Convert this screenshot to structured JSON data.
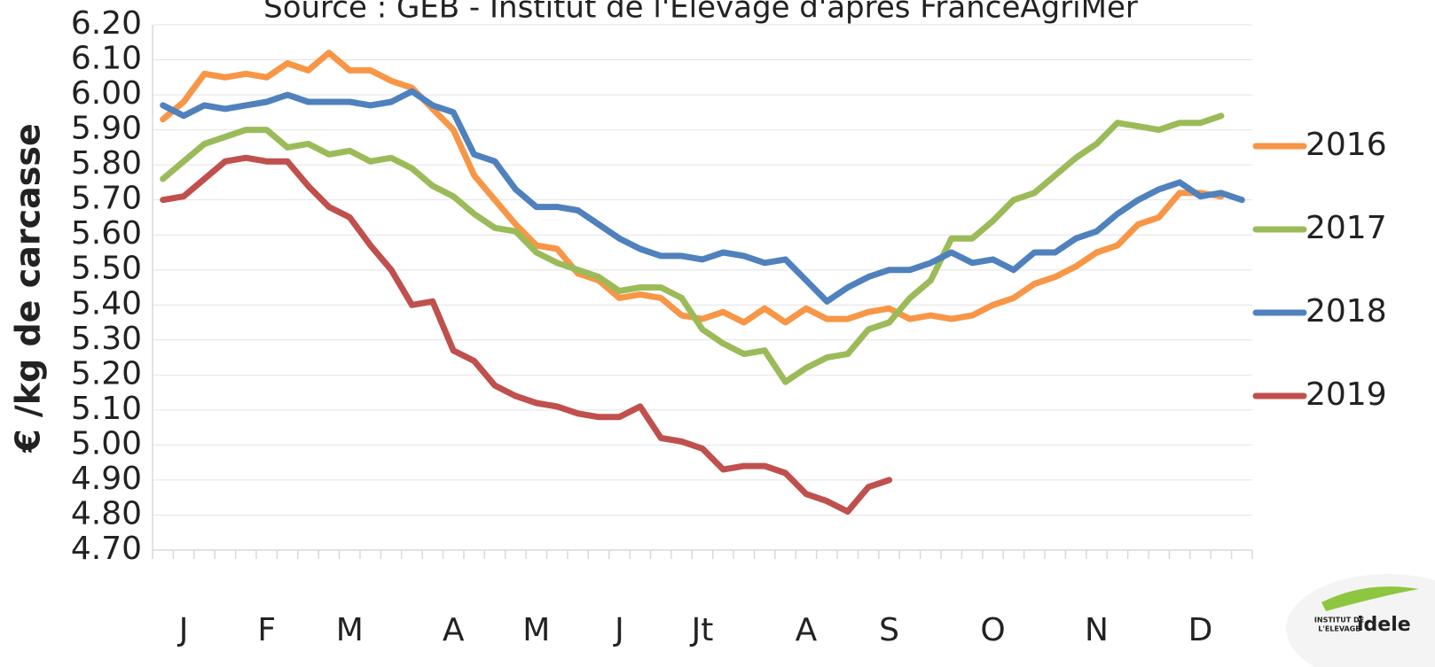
{
  "chart_data": {
    "type": "line",
    "title": "Source : GEB - Institut de l'Elevage d'après FranceAgriMer",
    "y_label": "€ /kg de carcasse",
    "logo": {
      "line1": "INSTITUT DE",
      "line2": "L'ELEVAGE",
      "brand": "idele"
    },
    "categories": [
      null,
      "J",
      null,
      null,
      null,
      "F",
      null,
      null,
      null,
      "M",
      null,
      null,
      null,
      null,
      "A",
      null,
      null,
      null,
      "M",
      null,
      null,
      null,
      "J",
      null,
      null,
      null,
      "Jt",
      null,
      null,
      null,
      null,
      "A",
      null,
      null,
      null,
      "S",
      null,
      null,
      null,
      null,
      "O",
      null,
      null,
      null,
      null,
      "N",
      null,
      null,
      null,
      null,
      "D",
      null,
      null
    ],
    "series": [
      {
        "name": "2016",
        "color": "#f79646",
        "values": [
          5.93,
          5.98,
          6.06,
          6.05,
          6.06,
          6.05,
          6.09,
          6.07,
          6.12,
          6.07,
          6.07,
          6.04,
          6.02,
          5.96,
          5.9,
          5.77,
          5.7,
          5.63,
          5.57,
          5.56,
          5.49,
          5.47,
          5.42,
          5.43,
          5.42,
          5.37,
          5.36,
          5.38,
          5.35,
          5.39,
          5.35,
          5.39,
          5.36,
          5.36,
          5.38,
          5.39,
          5.36,
          5.37,
          5.36,
          5.37,
          5.4,
          5.42,
          5.46,
          5.48,
          5.51,
          5.55,
          5.57,
          5.63,
          5.65,
          5.72,
          5.72,
          5.71,
          null
        ]
      },
      {
        "name": "2017",
        "color": "#9bbb59",
        "values": [
          5.76,
          5.81,
          5.86,
          5.88,
          5.9,
          5.9,
          5.85,
          5.86,
          5.83,
          5.84,
          5.81,
          5.82,
          5.79,
          5.74,
          5.71,
          5.66,
          5.62,
          5.61,
          5.55,
          5.52,
          5.5,
          5.48,
          5.44,
          5.45,
          5.45,
          5.42,
          5.33,
          5.29,
          5.26,
          5.27,
          5.18,
          5.22,
          5.25,
          5.26,
          5.33,
          5.35,
          5.42,
          5.47,
          5.59,
          5.59,
          5.64,
          5.7,
          5.72,
          5.77,
          5.82,
          5.86,
          5.92,
          5.91,
          5.9,
          5.92,
          5.92,
          5.94,
          null
        ]
      },
      {
        "name": "2018",
        "color": "#4f81bd",
        "values": [
          5.97,
          5.94,
          5.97,
          5.96,
          5.97,
          5.98,
          6.0,
          5.98,
          5.98,
          5.98,
          5.97,
          5.98,
          6.01,
          5.97,
          5.95,
          5.83,
          5.81,
          5.73,
          5.68,
          5.68,
          5.67,
          5.63,
          5.59,
          5.56,
          5.54,
          5.54,
          5.53,
          5.55,
          5.54,
          5.52,
          5.53,
          5.47,
          5.41,
          5.45,
          5.48,
          5.5,
          5.5,
          5.52,
          5.55,
          5.52,
          5.53,
          5.5,
          5.55,
          5.55,
          5.59,
          5.61,
          5.66,
          5.7,
          5.73,
          5.75,
          5.71,
          5.72,
          5.7
        ]
      },
      {
        "name": "2019",
        "color": "#c0504d",
        "values": [
          5.7,
          5.71,
          5.76,
          5.81,
          5.82,
          5.81,
          5.81,
          5.74,
          5.68,
          5.65,
          5.57,
          5.5,
          5.4,
          5.41,
          5.27,
          5.24,
          5.17,
          5.14,
          5.12,
          5.11,
          5.09,
          5.08,
          5.08,
          5.11,
          5.02,
          5.01,
          4.99,
          4.93,
          4.94,
          4.94,
          4.92,
          4.86,
          4.84,
          4.81,
          4.88,
          4.9,
          null,
          null,
          null,
          null,
          null,
          null,
          null,
          null,
          null,
          null,
          null,
          null,
          null,
          null,
          null,
          null,
          null
        ]
      }
    ],
    "ylim": [
      4.7,
      6.2
    ],
    "yticks": [
      {
        "value": 4.7,
        "label": "4.70"
      },
      {
        "value": 4.8,
        "label": "4.80"
      },
      {
        "value": 4.9,
        "label": "4.90"
      },
      {
        "value": 5,
        "label": "5.00"
      },
      {
        "value": 5.1,
        "label": "5.10"
      },
      {
        "value": 5.2,
        "label": "5.20"
      },
      {
        "value": 5.3,
        "label": "5.30"
      },
      {
        "value": 5.4,
        "label": "5.40"
      },
      {
        "value": 5.5,
        "label": "5.50"
      },
      {
        "value": 5.6,
        "label": "5.60"
      },
      {
        "value": 5.7,
        "label": "5.70"
      },
      {
        "value": 5.8,
        "label": "5.80"
      },
      {
        "value": 5.9,
        "label": "5.90"
      },
      {
        "value": 6,
        "label": "6.00"
      },
      {
        "value": 6.1,
        "label": "6.10"
      },
      {
        "value": 6.2,
        "label": "6.20"
      }
    ],
    "grid": true,
    "legend": "right"
  }
}
